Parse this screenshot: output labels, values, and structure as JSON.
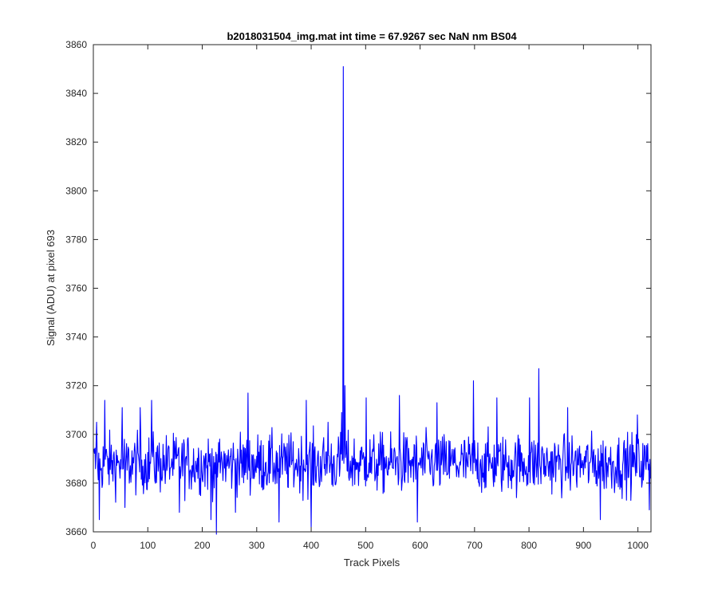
{
  "chart_data": {
    "type": "line",
    "title": "b2018031504_img.mat int time = 67.9267 sec  NaN nm BS04",
    "xlabel": "Track Pixels",
    "ylabel": "Signal (ADU) at pixel 693",
    "xlim": [
      0,
      1024
    ],
    "ylim": [
      3660,
      3860
    ],
    "xticks": [
      0,
      100,
      200,
      300,
      400,
      500,
      600,
      700,
      800,
      900,
      1000
    ],
    "yticks": [
      3660,
      3680,
      3700,
      3720,
      3740,
      3760,
      3780,
      3800,
      3820,
      3840,
      3860
    ],
    "grid": false,
    "legend": "none",
    "series": [
      {
        "color": "#0000ff",
        "baseline": 3688,
        "noise_amplitude": 8,
        "n_points": 1024,
        "notable_points": [
          {
            "x": 5,
            "y": 3705
          },
          {
            "x": 10,
            "y": 3665
          },
          {
            "x": 20,
            "y": 3714
          },
          {
            "x": 52,
            "y": 3711
          },
          {
            "x": 57,
            "y": 3670
          },
          {
            "x": 85,
            "y": 3711
          },
          {
            "x": 106,
            "y": 3714
          },
          {
            "x": 157,
            "y": 3668
          },
          {
            "x": 215,
            "y": 3665
          },
          {
            "x": 225,
            "y": 3659
          },
          {
            "x": 260,
            "y": 3668
          },
          {
            "x": 283,
            "y": 3717
          },
          {
            "x": 340,
            "y": 3664
          },
          {
            "x": 390,
            "y": 3714
          },
          {
            "x": 399,
            "y": 3662
          },
          {
            "x": 430,
            "y": 3705
          },
          {
            "x": 455,
            "y": 3709
          },
          {
            "x": 458,
            "y": 3851
          },
          {
            "x": 461,
            "y": 3720
          },
          {
            "x": 500,
            "y": 3715
          },
          {
            "x": 561,
            "y": 3716
          },
          {
            "x": 594,
            "y": 3664
          },
          {
            "x": 630,
            "y": 3713
          },
          {
            "x": 697,
            "y": 3722
          },
          {
            "x": 740,
            "y": 3715
          },
          {
            "x": 800,
            "y": 3715
          },
          {
            "x": 817,
            "y": 3727
          },
          {
            "x": 870,
            "y": 3711
          },
          {
            "x": 930,
            "y": 3665
          },
          {
            "x": 998,
            "y": 3708
          },
          {
            "x": 1020,
            "y": 3669
          }
        ]
      }
    ]
  }
}
